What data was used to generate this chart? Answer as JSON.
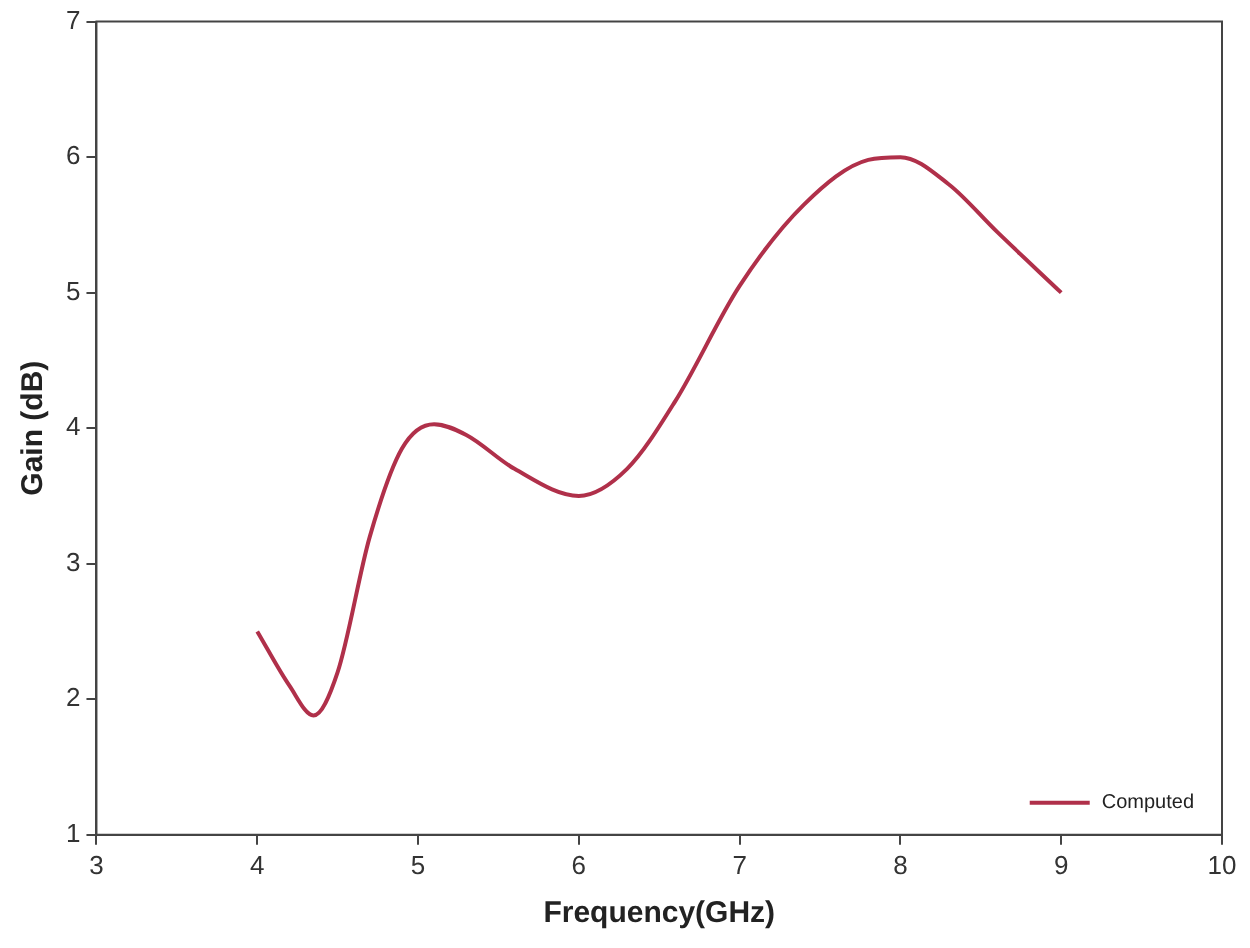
{
  "chart_data": {
    "type": "line",
    "xlabel": "Frequency(GHz)",
    "ylabel": "Gain (dB)",
    "x": [
      4,
      4.2,
      4.35,
      4.5,
      4.7,
      4.9,
      5.1,
      5.3,
      5.6,
      6,
      6.3,
      6.6,
      7,
      7.4,
      7.8,
      8,
      8.3,
      8.6,
      9
    ],
    "series": [
      {
        "name": "Computed",
        "color": "#b0304a",
        "values": [
          2.5,
          2.1,
          1.88,
          2.2,
          3.2,
          3.85,
          4.03,
          3.95,
          3.7,
          3.5,
          3.7,
          4.2,
          5.05,
          5.65,
          5.98,
          6.0,
          5.8,
          5.45,
          5.0
        ]
      }
    ],
    "xlim": [
      3,
      10
    ],
    "xticks": [
      3,
      4,
      5,
      6,
      7,
      8,
      9,
      10
    ],
    "ylim": [
      1,
      7
    ],
    "yticks": [
      1,
      2,
      3,
      4,
      5,
      6,
      7
    ],
    "grid": false,
    "legend": "bottom right",
    "marker": "none",
    "line_style": "solid"
  }
}
